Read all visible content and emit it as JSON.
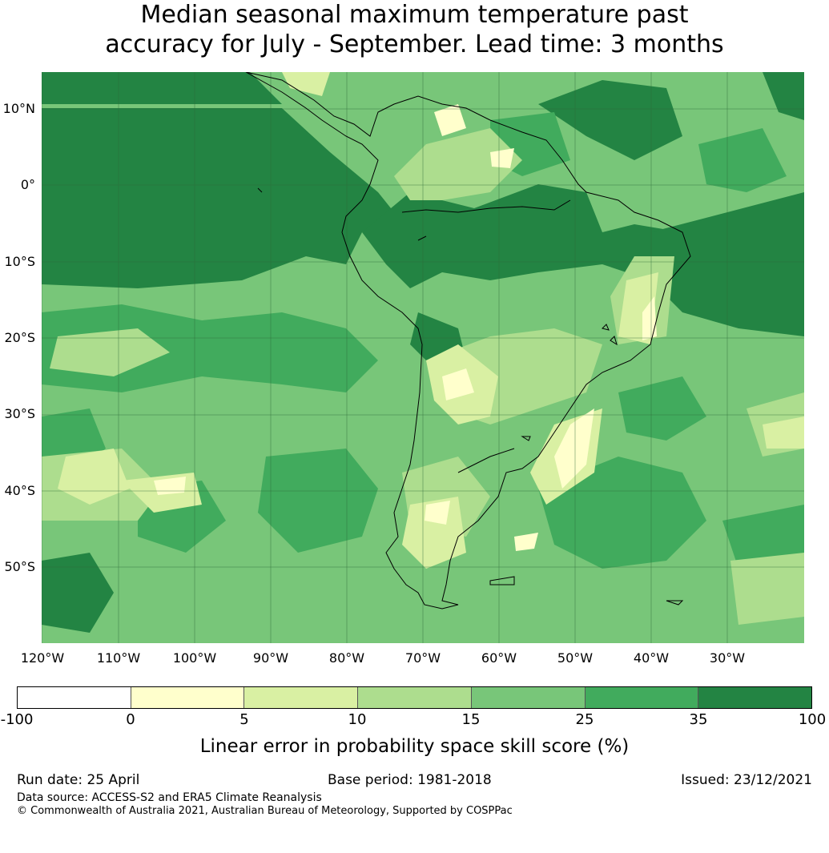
{
  "title_line1": "Median seasonal maximum temperature past",
  "title_line2": "accuracy for July - September. Lead time: 3 months",
  "map": {
    "background_color": "#73c476",
    "lat_labels": [
      "10°N",
      "0°",
      "10°S",
      "20°S",
      "30°S",
      "40°S",
      "50°S"
    ],
    "lon_labels": [
      "120°W",
      "110°W",
      "100°W",
      "90°W",
      "80°W",
      "70°W",
      "60°W",
      "50°W",
      "40°W",
      "30°W"
    ]
  },
  "colorbar": {
    "ticks": [
      "-100",
      "0",
      "5",
      "10",
      "15",
      "25",
      "35",
      "100"
    ],
    "colors": [
      "#ffffff",
      "#ffffcc",
      "#d9f0a3",
      "#addd8e",
      "#78c679",
      "#41ab5d",
      "#238443"
    ],
    "label": "Linear error in probability space skill score (%)"
  },
  "footer": {
    "run_date": "Run date: 25 April",
    "base_period": "Base period: 1981-2018",
    "issued": "Issued: 23/12/2021",
    "data_source": "Data source: ACCESS-S2 and ERA5 Climate Reanalysis",
    "copyright": "© Commonwealth of Australia 2021, Australian Bureau of Meteorology, Supported by COSPPac"
  }
}
